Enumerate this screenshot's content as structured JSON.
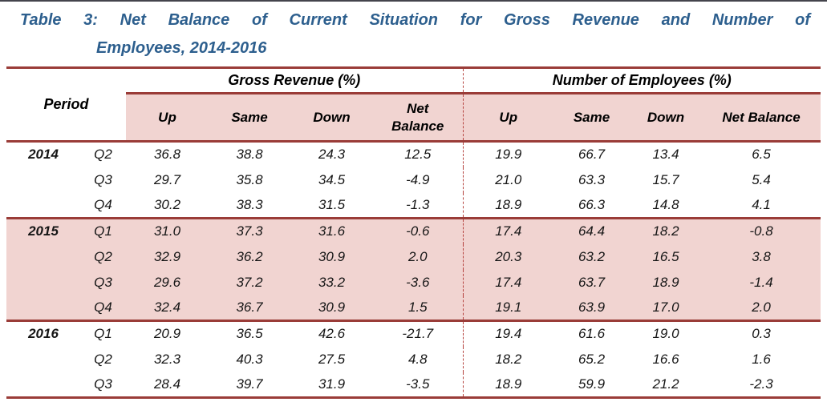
{
  "page": {
    "title_line1": "Table 3: Net Balance of Current Situation for Gross Revenue and Number of",
    "title_line2": "Employees, 2014-2016"
  },
  "colors": {
    "rule_dark_red": "#9a3c38",
    "highlight_pink": "#f1d4d1",
    "title_blue": "#2d5f8e",
    "divider_red": "#b5433f",
    "top_strip": "#44444c"
  },
  "table": {
    "period_header": "Period",
    "sections": [
      {
        "label": "Gross Revenue (%)",
        "columns": [
          "Up",
          "Same",
          "Down",
          "Net Balance"
        ]
      },
      {
        "label": "Number of Employees (%)",
        "columns": [
          "Up",
          "Same",
          "Down",
          "Net Balance"
        ]
      }
    ],
    "groups": [
      {
        "year": "2014",
        "highlight": false,
        "rows": [
          {
            "quarter": "Q2",
            "gross_revenue": {
              "up": "36.8",
              "same": "38.8",
              "down": "24.3",
              "net_balance": "12.5"
            },
            "employees": {
              "up": "19.9",
              "same": "66.7",
              "down": "13.4",
              "net_balance": "6.5"
            }
          },
          {
            "quarter": "Q3",
            "gross_revenue": {
              "up": "29.7",
              "same": "35.8",
              "down": "34.5",
              "net_balance": "-4.9"
            },
            "employees": {
              "up": "21.0",
              "same": "63.3",
              "down": "15.7",
              "net_balance": "5.4"
            }
          },
          {
            "quarter": "Q4",
            "gross_revenue": {
              "up": "30.2",
              "same": "38.3",
              "down": "31.5",
              "net_balance": "-1.3"
            },
            "employees": {
              "up": "18.9",
              "same": "66.3",
              "down": "14.8",
              "net_balance": "4.1"
            }
          }
        ]
      },
      {
        "year": "2015",
        "highlight": true,
        "rows": [
          {
            "quarter": "Q1",
            "gross_revenue": {
              "up": "31.0",
              "same": "37.3",
              "down": "31.6",
              "net_balance": "-0.6"
            },
            "employees": {
              "up": "17.4",
              "same": "64.4",
              "down": "18.2",
              "net_balance": "-0.8"
            }
          },
          {
            "quarter": "Q2",
            "gross_revenue": {
              "up": "32.9",
              "same": "36.2",
              "down": "30.9",
              "net_balance": "2.0"
            },
            "employees": {
              "up": "20.3",
              "same": "63.2",
              "down": "16.5",
              "net_balance": "3.8"
            }
          },
          {
            "quarter": "Q3",
            "gross_revenue": {
              "up": "29.6",
              "same": "37.2",
              "down": "33.2",
              "net_balance": "-3.6"
            },
            "employees": {
              "up": "17.4",
              "same": "63.7",
              "down": "18.9",
              "net_balance": "-1.4"
            }
          },
          {
            "quarter": "Q4",
            "gross_revenue": {
              "up": "32.4",
              "same": "36.7",
              "down": "30.9",
              "net_balance": "1.5"
            },
            "employees": {
              "up": "19.1",
              "same": "63.9",
              "down": "17.0",
              "net_balance": "2.0"
            }
          }
        ]
      },
      {
        "year": "2016",
        "highlight": false,
        "rows": [
          {
            "quarter": "Q1",
            "gross_revenue": {
              "up": "20.9",
              "same": "36.5",
              "down": "42.6",
              "net_balance": "-21.7"
            },
            "employees": {
              "up": "19.4",
              "same": "61.6",
              "down": "19.0",
              "net_balance": "0.3"
            }
          },
          {
            "quarter": "Q2",
            "gross_revenue": {
              "up": "32.3",
              "same": "40.3",
              "down": "27.5",
              "net_balance": "4.8"
            },
            "employees": {
              "up": "18.2",
              "same": "65.2",
              "down": "16.6",
              "net_balance": "1.6"
            }
          },
          {
            "quarter": "Q3",
            "gross_revenue": {
              "up": "28.4",
              "same": "39.7",
              "down": "31.9",
              "net_balance": "-3.5"
            },
            "employees": {
              "up": "18.9",
              "same": "59.9",
              "down": "21.2",
              "net_balance": "-2.3"
            }
          }
        ]
      }
    ]
  }
}
